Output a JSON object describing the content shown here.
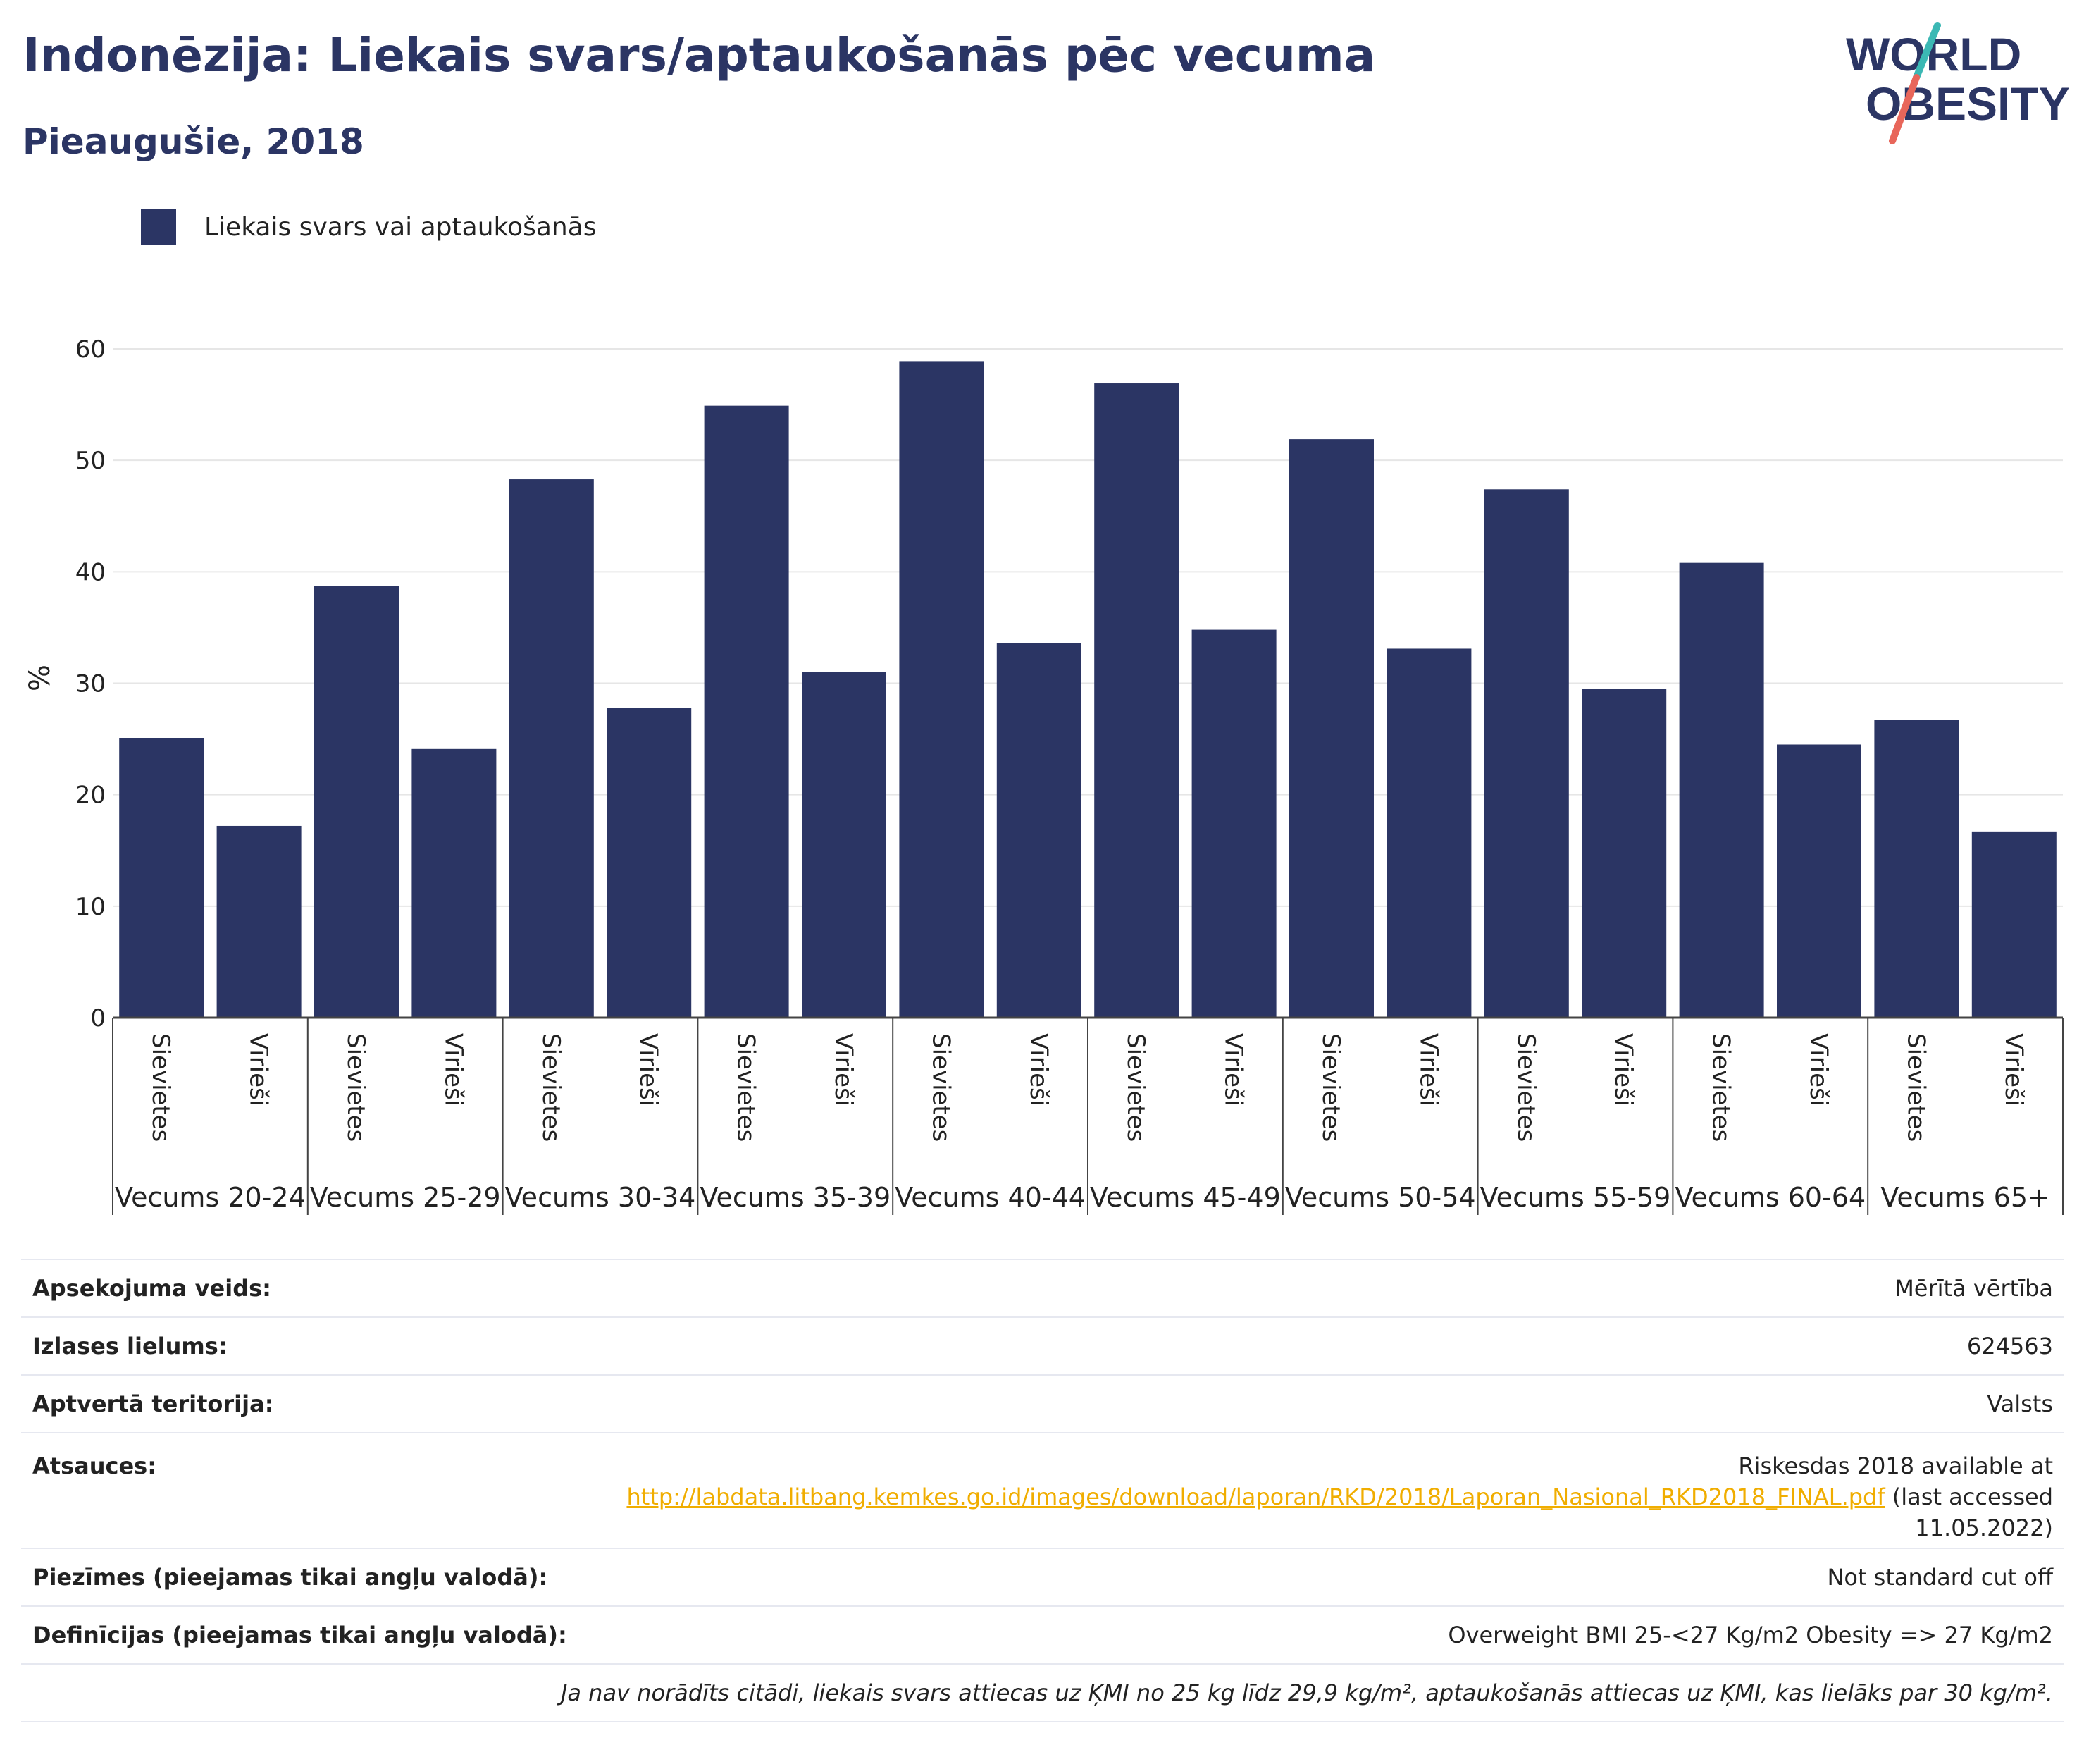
{
  "title": "Indonēzija: Liekais svars/aptaukošanās pēc vecuma",
  "subtitle": "Pieaugušie, 2018",
  "logo": {
    "line1": "WORLD",
    "line2": "OBESITY",
    "icon": "world-obesity-logo"
  },
  "colors": {
    "bar": "#2b3564",
    "title": "#2b3564",
    "link": "#f0ad00",
    "grid": "#e6e6e6"
  },
  "legend": {
    "label": "Liekais svars vai aptaukošanās"
  },
  "chart_data": {
    "type": "bar",
    "ylabel": "%",
    "xlabel": "",
    "ylim": [
      0,
      60
    ],
    "yticks": [
      0,
      10,
      20,
      30,
      40,
      50,
      60
    ],
    "grid": true,
    "legend_position": "top-left",
    "groups": [
      "Vecums 20-24",
      "Vecums 25-29",
      "Vecums 30-34",
      "Vecums 35-39",
      "Vecums 40-44",
      "Vecums 45-49",
      "Vecums 50-54",
      "Vecums 55-59",
      "Vecums 60-64",
      "Vecums 65+"
    ],
    "subcategories": [
      "Sievietes",
      "Vīrieši"
    ],
    "series": [
      {
        "name": "Liekais svars vai aptaukošanās",
        "values": [
          [
            25.1,
            17.2
          ],
          [
            38.7,
            24.1
          ],
          [
            48.3,
            27.8
          ],
          [
            54.9,
            31.0
          ],
          [
            58.9,
            33.6
          ],
          [
            56.9,
            34.8
          ],
          [
            51.9,
            33.1
          ],
          [
            47.4,
            29.5
          ],
          [
            40.8,
            24.5
          ],
          [
            26.7,
            16.7
          ]
        ]
      }
    ]
  },
  "info": {
    "rows": [
      {
        "key": "Apsekojuma veids:",
        "value": "Mērītā vērtība"
      },
      {
        "key": "Izlases lielums:",
        "value": "624563"
      },
      {
        "key": "Aptvertā teritorija:",
        "value": "Valsts"
      }
    ],
    "sources": {
      "key": "Atsauces:",
      "line1": "Riskesdas 2018 available at",
      "link": "http://labdata.litbang.kemkes.go.id/images/download/laporan/RKD/2018/Laporan_Nasional_RKD2018_FINAL.pdf",
      "after_link": "(last accessed",
      "line3": "11.05.2022)"
    },
    "notes": {
      "key": "Piezīmes (pieejamas tikai angļu valodā):",
      "value": "Not standard cut off"
    },
    "definitions": {
      "key": "Definīcijas (pieejamas tikai angļu valodā):",
      "value": "Overweight BMI 25-<27 Kg/m2 Obesity => 27 Kg/m2"
    },
    "footnote": "Ja nav norādīts citādi, liekais svars attiecas uz ĶMI no 25 kg līdz 29,9 kg/m², aptaukošanās attiecas uz ĶMI, kas lielāks par 30 kg/m²."
  }
}
